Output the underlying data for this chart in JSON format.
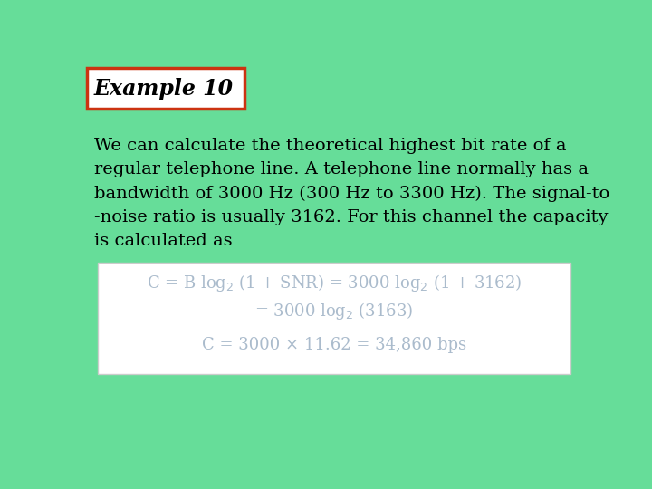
{
  "background_color": "#66DD99",
  "title_text": "Example 10",
  "title_box_color": "#FFFFFF",
  "title_box_edge_color": "#CC3311",
  "title_font_size": 17,
  "body_text_lines": [
    "We can calculate the theoretical highest bit rate of a",
    "regular telephone line. A telephone line normally has a",
    "bandwidth of 3000 Hz (300 Hz to 3300 Hz). The signal-to",
    "-noise ratio is usually 3162. For this channel the capacity",
    "is calculated as"
  ],
  "body_font_size": 14,
  "body_text_color": "#000000",
  "formula_box_color": "#FFFFFF",
  "formula_line1": "C = B log$_2$ (1 + SNR) = 3000 log$_2$ (1 + 3162)",
  "formula_line2": "= 3000 log$_2$ (3163)",
  "formula_line3": "C = 3000 × 11.62 = 34,860 bps",
  "formula_text_color": "#AABBCC",
  "formula_font_size": 13
}
